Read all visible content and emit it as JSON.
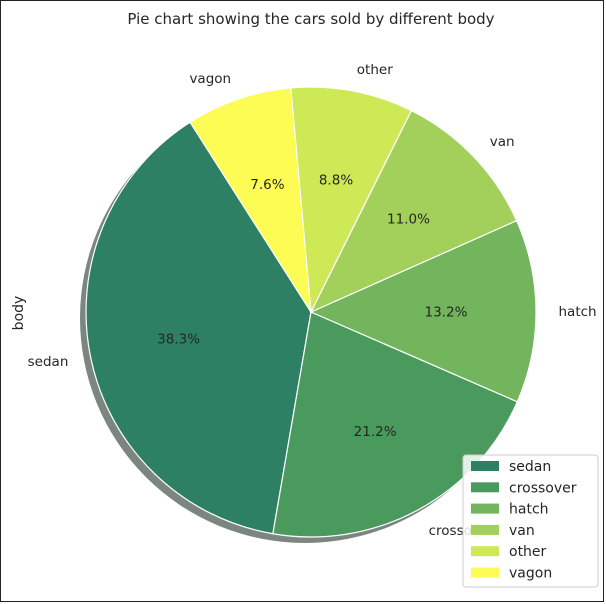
{
  "chart_data": {
    "type": "pie",
    "title": "Pie chart showing the cars sold by different body",
    "ylabel": "body",
    "categories": [
      "sedan",
      "crossover",
      "hatch",
      "van",
      "other",
      "vagon"
    ],
    "values": [
      38.3,
      21.2,
      13.2,
      11.0,
      8.8,
      7.6
    ],
    "pct_labels": [
      "38.3%",
      "21.2%",
      "13.2%",
      "11.0%",
      "8.8%",
      "7.6%"
    ],
    "colors": [
      "#2e8064",
      "#4a9a5e",
      "#73b55c",
      "#a2d05a",
      "#cde955",
      "#fcfc55"
    ],
    "shadow": true,
    "legend_position": "lower right"
  }
}
